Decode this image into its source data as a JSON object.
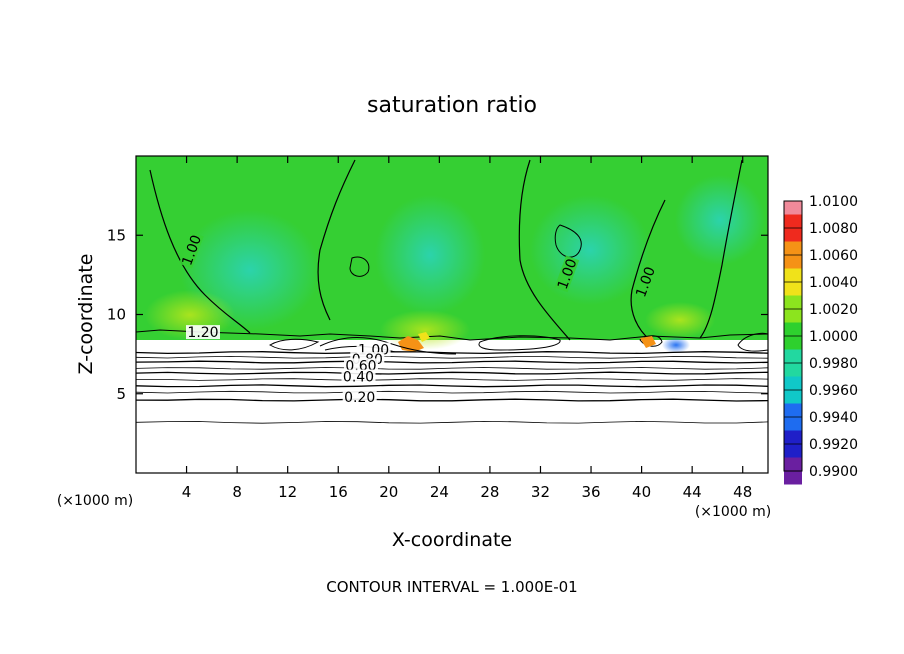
{
  "chart_data": {
    "type": "heatmap",
    "title": "saturation ratio",
    "xlabel": "X-coordinate",
    "ylabel": "Z-coordinate",
    "x_unit_left": "(×1000 m)",
    "x_unit_right": "(×1000 m)",
    "footer": "CONTOUR INTERVAL = 1.000E-01",
    "xlim": [
      0,
      50
    ],
    "ylim": [
      0,
      20
    ],
    "x_ticks": [
      4,
      8,
      12,
      16,
      20,
      24,
      28,
      32,
      36,
      40,
      44,
      48
    ],
    "y_ticks": [
      5,
      10,
      15
    ],
    "colorbar": {
      "min": 0.99,
      "max": 1.01,
      "levels": [
        "0.9900",
        "0.9920",
        "0.9940",
        "0.9960",
        "0.9980",
        "1.0000",
        "1.0020",
        "1.0040",
        "1.0060",
        "1.0080",
        "1.0100"
      ],
      "colors": [
        "#6a1fa0",
        "#1f1fc8",
        "#1e6cf0",
        "#10c8c8",
        "#22d8a0",
        "#2ed02e",
        "#8ce41e",
        "#f0e21a",
        "#f59216",
        "#ef2a1e",
        "#f08a9a"
      ]
    },
    "contour_labels": [
      {
        "text": "1.20",
        "x": 5.3,
        "y": 8.7
      },
      {
        "text": "1.00",
        "x": 4.6,
        "y": 14.0
      },
      {
        "text": "1.00",
        "x": 34.3,
        "y": 12.5
      },
      {
        "text": "1.00",
        "x": 40.5,
        "y": 12.0
      },
      {
        "text": "1.00",
        "x": 18.8,
        "y": 7.6
      },
      {
        "text": "0.80",
        "x": 18.3,
        "y": 7.0
      },
      {
        "text": "0.60",
        "x": 17.8,
        "y": 6.6
      },
      {
        "text": "0.40",
        "x": 17.6,
        "y": 5.9
      },
      {
        "text": "0.20",
        "x": 17.7,
        "y": 4.6
      }
    ],
    "stable_layer_contours": [
      7.6,
      7.3,
      7.0,
      6.6,
      6.3,
      5.9,
      5.5,
      5.1,
      4.6,
      3.2
    ],
    "saturation_top": 8.8
  }
}
